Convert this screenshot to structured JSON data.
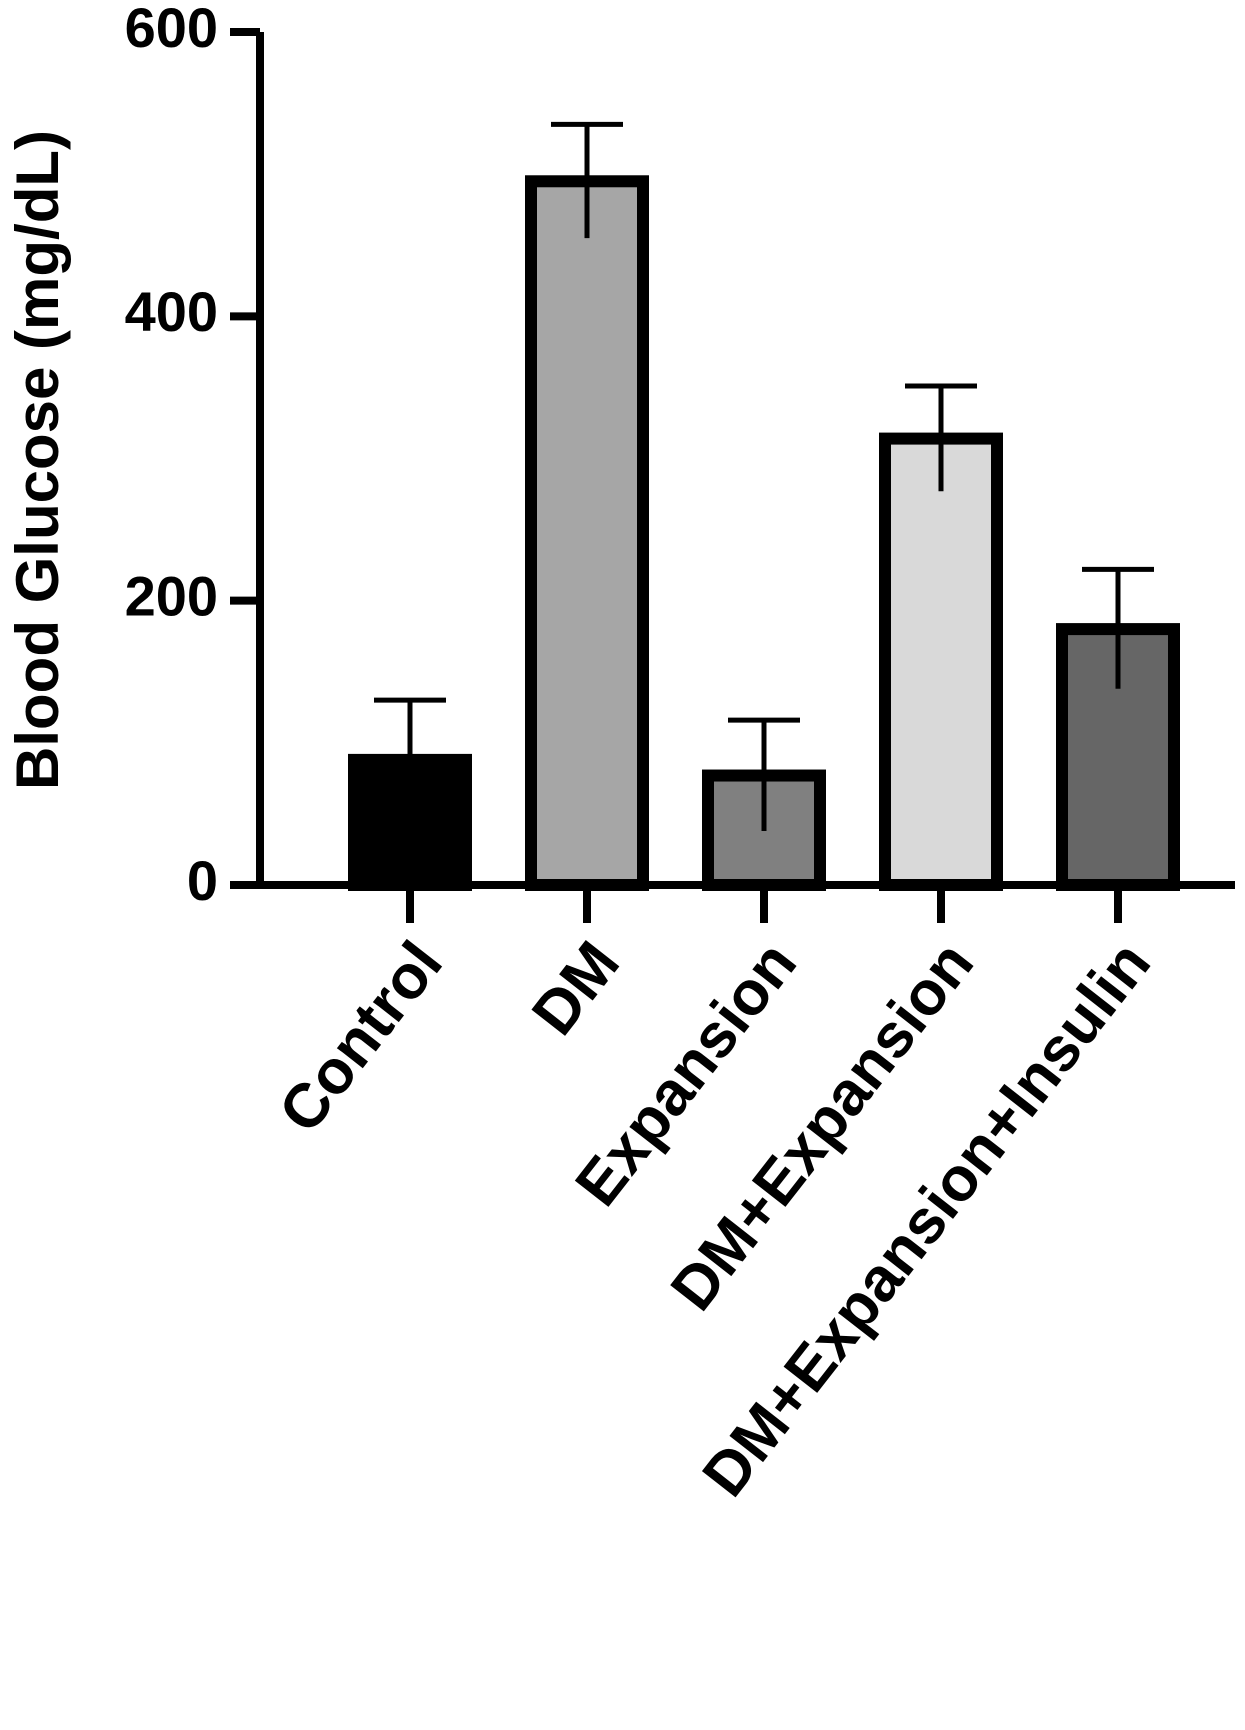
{
  "chart_data": {
    "type": "bar",
    "y_label": "Blood Glucose (mg/dL)",
    "categories": [
      "Control",
      "DM",
      "Expansion",
      "DM+Expansion",
      "DM+Expansion+Insulin"
    ],
    "values": [
      88,
      495,
      77,
      314,
      180
    ],
    "errors": [
      42,
      40,
      39,
      37,
      42
    ],
    "colors": [
      "#000000",
      "#a6a6a6",
      "#808080",
      "#d9d9d9",
      "#666666"
    ],
    "ylim": [
      0,
      600
    ],
    "yticks": [
      0,
      200,
      400,
      600
    ]
  }
}
